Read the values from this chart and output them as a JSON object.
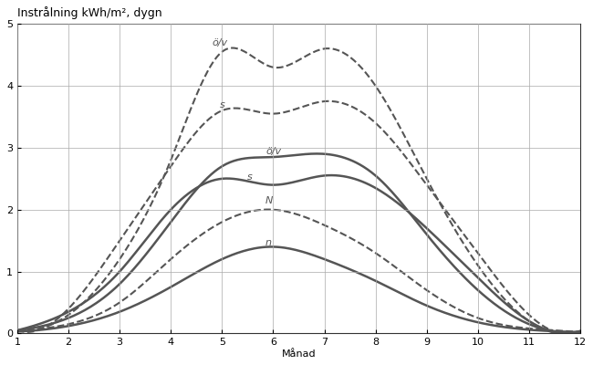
{
  "title": "Instrålning kWh/m², dygn",
  "xlabel": "Månad",
  "ylabel": "",
  "xlim": [
    1,
    12
  ],
  "ylim": [
    0,
    5
  ],
  "yticks": [
    0,
    1,
    2,
    3,
    4,
    5
  ],
  "xticks": [
    1,
    2,
    3,
    4,
    5,
    6,
    7,
    8,
    9,
    10,
    11,
    12
  ],
  "background_color": "#ffffff",
  "line_color": "#555555",
  "months": [
    1,
    2,
    3,
    4,
    5,
    6,
    7,
    8,
    9,
    10,
    11,
    12
  ],
  "curve_ov_dashed": [
    0.05,
    0.3,
    1.2,
    2.8,
    4.55,
    4.3,
    4.6,
    4.0,
    2.5,
    1.1,
    0.2,
    0.03
  ],
  "curve_s_dashed": [
    0.05,
    0.4,
    1.5,
    2.7,
    3.6,
    3.55,
    3.75,
    3.4,
    2.4,
    1.3,
    0.3,
    0.04
  ],
  "curve_n_dashed": [
    0.03,
    0.15,
    0.5,
    1.2,
    1.8,
    2.0,
    1.75,
    1.3,
    0.7,
    0.25,
    0.08,
    0.02
  ],
  "curve_ov_solid": [
    0.05,
    0.25,
    0.8,
    1.8,
    2.7,
    2.85,
    2.9,
    2.55,
    1.6,
    0.7,
    0.15,
    0.03
  ],
  "curve_s_solid": [
    0.05,
    0.35,
    1.0,
    2.0,
    2.5,
    2.4,
    2.55,
    2.35,
    1.7,
    0.9,
    0.2,
    0.04
  ],
  "curve_n_solid": [
    0.03,
    0.12,
    0.35,
    0.75,
    1.2,
    1.4,
    1.2,
    0.85,
    0.45,
    0.18,
    0.06,
    0.02
  ],
  "label_ov_dashed": "ö/v",
  "label_s_dashed": "s",
  "label_n_dashed": "N",
  "label_ov_solid": "ö/v",
  "label_s_solid": "s",
  "label_n_solid": "n"
}
